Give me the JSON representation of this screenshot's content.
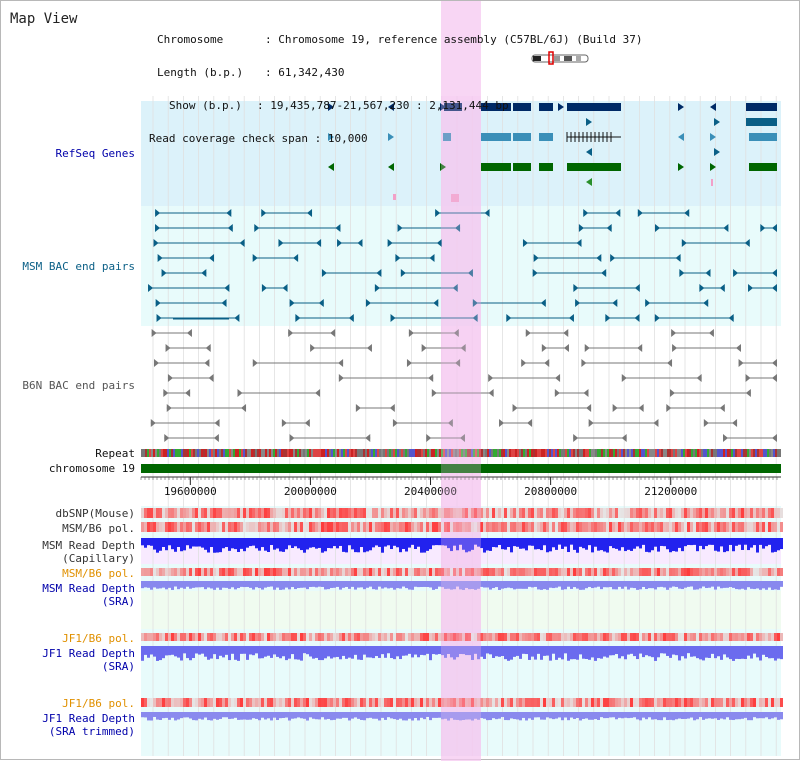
{
  "page": {
    "title": "Map View"
  },
  "info": {
    "chromosome_label": "Chromosome",
    "chromosome_value": "Chromosome 19, reference assembly (C57BL/6J) (Build 37)",
    "length_label": "Length (b.p.)",
    "length_value": "61,342,430",
    "show_label": "Show (b.p.)",
    "show_value": "19,435,787-21,567,230 : 2,131,444 bp",
    "coverage_label": "Read coverage check span",
    "coverage_value": "10,000"
  },
  "view": {
    "start_bp": 19435787,
    "end_bp": 21567230,
    "highlight_start_bp": 20435000,
    "highlight_end_bp": 20565000
  },
  "tracks": {
    "refseq": {
      "label": "RefSeq Genes",
      "color": "#0000aa"
    },
    "msm_bac": {
      "label": "MSM BAC end pairs",
      "color": "#0a5f86"
    },
    "b6n_bac": {
      "label": "B6N BAC end pairs",
      "color": "#555555"
    },
    "repeat": {
      "label": "Repeat"
    },
    "chromosome": {
      "label": "chromosome 19"
    },
    "dbsnp": {
      "label": "dbSNP(Mouse)"
    },
    "msm_b6_pol_1": {
      "label": "MSM/B6 pol."
    },
    "msm_depth_cap": {
      "label1": "MSM Read Depth",
      "label2": "(Capillary)"
    },
    "msm_b6_pol_2": {
      "label": "MSM/B6 pol.",
      "color": "#e09000"
    },
    "msm_depth_sra": {
      "label1": "MSM Read Depth",
      "label2": "(SRA)"
    },
    "jf1_b6_pol_1": {
      "label": "JF1/B6 pol.",
      "color": "#e09000"
    },
    "jf1_depth_sra": {
      "label1": "JF1 Read Depth",
      "label2": "(SRA)"
    },
    "jf1_b6_pol_2": {
      "label": "JF1/B6 pol.",
      "color": "#e09000"
    },
    "jf1_depth_trim": {
      "label1": "JF1 Read Depth",
      "label2": "(SRA trimmed)"
    }
  },
  "ruler": {
    "ticks": [
      "19600000",
      "20000000",
      "20400000",
      "20800000",
      "21200000"
    ]
  },
  "colors": {
    "refseq_bg": "#dcf2fa",
    "bac_bg": "#e8fbfb",
    "highlight": "#f5c8f0",
    "chromosome": "#006600",
    "light_green_bg": "#f0fbf0",
    "light_cyan_bg": "#e8fbfb"
  }
}
